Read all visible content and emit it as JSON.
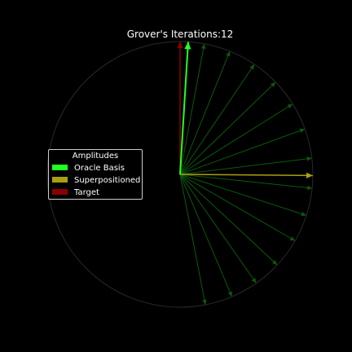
{
  "chart_data": {
    "type": "polar-vector",
    "title": "Grover's Iterations:12",
    "legend": {
      "title": "Amplitudes",
      "placement": "center-left",
      "entries": [
        {
          "label": "Oracle Basis",
          "color": "#22ff22"
        },
        {
          "label": "Superpositioned",
          "color": "#a8a010"
        },
        {
          "label": "Target",
          "color": "#8a0000"
        }
      ]
    },
    "vectors": {
      "target": {
        "angle_deg": 90,
        "magnitude": 1.0,
        "color": "#8a0000"
      },
      "superpositioned": {
        "angle_deg": -0.5,
        "magnitude": 1.0,
        "color": "#a8a010"
      },
      "oracle_current": {
        "angle_deg": 86.5,
        "magnitude": 1.0,
        "color": "#22ff22"
      },
      "oracle_history": {
        "color": "#0c5a0c",
        "angles_deg": [
          79.5,
          68,
          56,
          44,
          32,
          20,
          7,
          -6,
          -18,
          -30,
          -43,
          -55,
          -67,
          -79
        ]
      }
    },
    "unit_circle": true,
    "grid": false
  }
}
